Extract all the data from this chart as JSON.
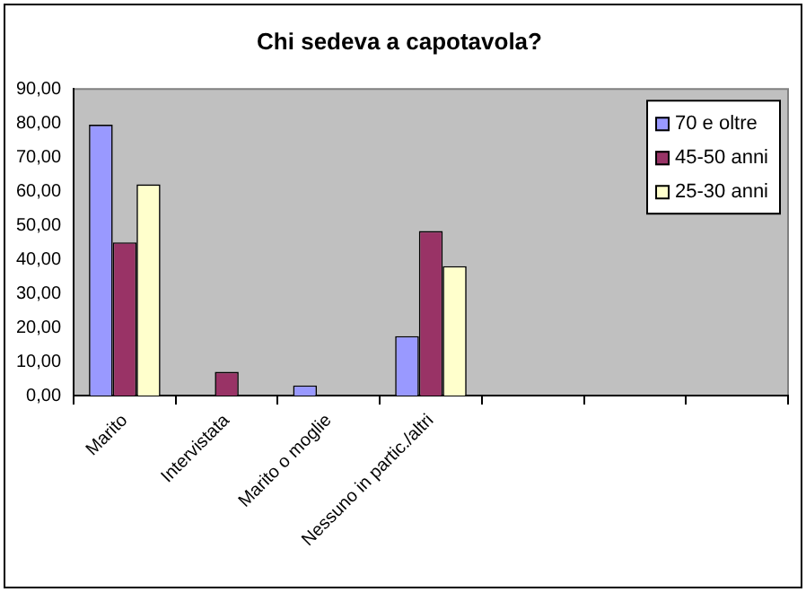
{
  "chart_data": {
    "type": "bar",
    "title": "Chi sedeva a capotavola?",
    "categories": [
      "Marito",
      "Intervistata",
      "Marito o moglie",
      "Nessuno in partic./altri",
      null,
      null,
      null
    ],
    "series": [
      {
        "name": "70 e oltre",
        "color": "#9999ff",
        "values": [
          79.5,
          0,
          3,
          17.5,
          null,
          null,
          null
        ]
      },
      {
        "name": "45-50 anni",
        "color": "#993366",
        "values": [
          45,
          7,
          0,
          48.3,
          null,
          null,
          null
        ]
      },
      {
        "name": "25-30 anni",
        "color": "#ffffcc",
        "values": [
          62,
          0,
          0,
          38,
          null,
          null,
          null
        ]
      }
    ],
    "ylim": [
      0,
      90
    ],
    "yticks": [
      {
        "value": 0,
        "label": "0,00"
      },
      {
        "value": 10,
        "label": "10,00"
      },
      {
        "value": 20,
        "label": "20,00"
      },
      {
        "value": 30,
        "label": "30,00"
      },
      {
        "value": 40,
        "label": "40,00"
      },
      {
        "value": 50,
        "label": "50,00"
      },
      {
        "value": 60,
        "label": "60,00"
      },
      {
        "value": 70,
        "label": "70,00"
      },
      {
        "value": 80,
        "label": "80,00"
      },
      {
        "value": 90,
        "label": "90,00"
      }
    ],
    "grid": false,
    "legend": "top right"
  }
}
